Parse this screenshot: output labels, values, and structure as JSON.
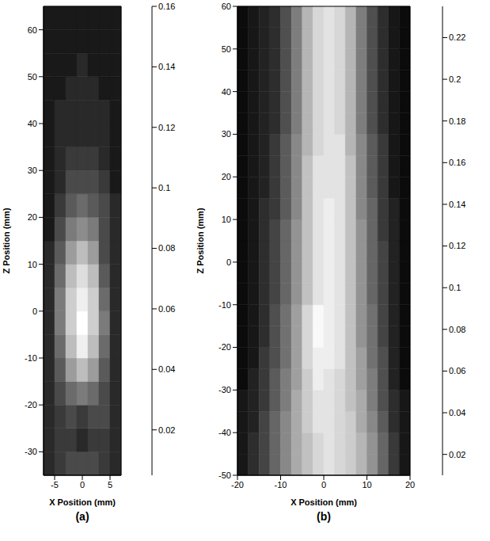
{
  "chart_data": [
    {
      "type": "heatmap",
      "title": "(a)",
      "x_label": "X Position (mm)",
      "y_label": "Z Position (mm)",
      "xlim": [
        -7,
        7
      ],
      "xticks": [
        -5,
        0,
        5
      ],
      "ylim": [
        -35,
        65
      ],
      "yticks": [
        -30,
        -20,
        -10,
        0,
        10,
        20,
        30,
        40,
        50,
        60
      ],
      "color": "gray",
      "clim": [
        0.005,
        0.16
      ],
      "cticks": [
        0.02,
        0.04,
        0.06,
        0.08,
        0.1,
        0.12,
        0.14,
        0.16
      ],
      "x_bins": [
        -7,
        -5,
        -3,
        -1,
        1,
        3,
        5,
        7
      ],
      "y_bins": [
        -35,
        -30,
        -25,
        -20,
        -15,
        -10,
        -5,
        0,
        5,
        10,
        15,
        20,
        25,
        30,
        35,
        40,
        45,
        50,
        55,
        60,
        65
      ],
      "cells": [
        [
          0.03,
          0.04,
          0.05,
          0.05,
          0.05,
          0.04,
          0.03
        ],
        [
          0.03,
          0.04,
          0.04,
          0.03,
          0.04,
          0.04,
          0.03
        ],
        [
          0.03,
          0.04,
          0.05,
          0.04,
          0.05,
          0.05,
          0.03
        ],
        [
          0.03,
          0.05,
          0.07,
          0.08,
          0.07,
          0.05,
          0.03
        ],
        [
          0.03,
          0.06,
          0.1,
          0.12,
          0.1,
          0.06,
          0.03
        ],
        [
          0.03,
          0.07,
          0.12,
          0.15,
          0.12,
          0.07,
          0.03
        ],
        [
          0.03,
          0.08,
          0.13,
          0.16,
          0.13,
          0.08,
          0.03
        ],
        [
          0.03,
          0.08,
          0.13,
          0.15,
          0.13,
          0.07,
          0.03
        ],
        [
          0.03,
          0.07,
          0.12,
          0.14,
          0.12,
          0.06,
          0.03
        ],
        [
          0.03,
          0.06,
          0.1,
          0.12,
          0.1,
          0.05,
          0.03
        ],
        [
          0.02,
          0.05,
          0.08,
          0.09,
          0.08,
          0.05,
          0.03
        ],
        [
          0.02,
          0.04,
          0.06,
          0.07,
          0.06,
          0.05,
          0.03
        ],
        [
          0.02,
          0.03,
          0.05,
          0.05,
          0.05,
          0.04,
          0.02
        ],
        [
          0.02,
          0.03,
          0.04,
          0.04,
          0.04,
          0.03,
          0.02
        ],
        [
          0.02,
          0.03,
          0.03,
          0.03,
          0.03,
          0.03,
          0.02
        ],
        [
          0.02,
          0.03,
          0.03,
          0.03,
          0.03,
          0.03,
          0.02
        ],
        [
          0.02,
          0.02,
          0.03,
          0.03,
          0.03,
          0.02,
          0.02
        ],
        [
          0.02,
          0.02,
          0.02,
          0.03,
          0.02,
          0.02,
          0.02
        ],
        [
          0.02,
          0.02,
          0.02,
          0.02,
          0.02,
          0.02,
          0.02
        ],
        [
          0.02,
          0.02,
          0.02,
          0.02,
          0.02,
          0.02,
          0.02
        ]
      ]
    },
    {
      "type": "heatmap",
      "title": "(b)",
      "x_label": "X Position (mm)",
      "y_label": "Z Position (mm)",
      "xlim": [
        -20,
        20
      ],
      "xticks": [
        -20,
        -10,
        0,
        10,
        20
      ],
      "ylim": [
        -50,
        60
      ],
      "yticks": [
        -50,
        -40,
        -30,
        -20,
        -10,
        0,
        10,
        20,
        30,
        40,
        50,
        60
      ],
      "color": "gray",
      "clim": [
        0.01,
        0.235
      ],
      "cticks": [
        0.02,
        0.04,
        0.06,
        0.08,
        0.1,
        0.12,
        0.14,
        0.16,
        0.18,
        0.2,
        0.22
      ],
      "x_bins": [
        -20,
        -17.5,
        -15,
        -12.5,
        -10,
        -7.5,
        -5,
        -2.5,
        0,
        2.5,
        5,
        7.5,
        10,
        12.5,
        15,
        17.5,
        20
      ],
      "y_bins": [
        -50,
        -45,
        -40,
        -35,
        -30,
        -25,
        -20,
        -15,
        -10,
        -5,
        0,
        5,
        10,
        15,
        20,
        25,
        30,
        35,
        40,
        45,
        50,
        55,
        60
      ],
      "cells": [
        [
          0.03,
          0.05,
          0.07,
          0.1,
          0.13,
          0.16,
          0.18,
          0.2,
          0.21,
          0.2,
          0.19,
          0.17,
          0.14,
          0.1,
          0.06,
          0.03
        ],
        [
          0.03,
          0.05,
          0.07,
          0.1,
          0.13,
          0.16,
          0.18,
          0.2,
          0.21,
          0.2,
          0.19,
          0.17,
          0.14,
          0.1,
          0.06,
          0.03
        ],
        [
          0.03,
          0.04,
          0.07,
          0.1,
          0.13,
          0.16,
          0.19,
          0.21,
          0.21,
          0.2,
          0.19,
          0.16,
          0.13,
          0.09,
          0.05,
          0.03
        ],
        [
          0.03,
          0.04,
          0.06,
          0.09,
          0.12,
          0.16,
          0.19,
          0.21,
          0.21,
          0.2,
          0.18,
          0.16,
          0.12,
          0.08,
          0.05,
          0.03
        ],
        [
          0.02,
          0.04,
          0.06,
          0.09,
          0.12,
          0.15,
          0.19,
          0.22,
          0.21,
          0.2,
          0.18,
          0.15,
          0.12,
          0.08,
          0.04,
          0.02
        ],
        [
          0.02,
          0.03,
          0.06,
          0.08,
          0.11,
          0.15,
          0.2,
          0.22,
          0.22,
          0.21,
          0.18,
          0.15,
          0.11,
          0.08,
          0.04,
          0.02
        ],
        [
          0.02,
          0.03,
          0.05,
          0.08,
          0.11,
          0.15,
          0.2,
          0.23,
          0.22,
          0.21,
          0.18,
          0.14,
          0.11,
          0.07,
          0.04,
          0.02
        ],
        [
          0.02,
          0.03,
          0.05,
          0.08,
          0.11,
          0.15,
          0.2,
          0.23,
          0.22,
          0.21,
          0.18,
          0.14,
          0.11,
          0.07,
          0.04,
          0.02
        ],
        [
          0.02,
          0.03,
          0.05,
          0.07,
          0.1,
          0.14,
          0.18,
          0.21,
          0.22,
          0.21,
          0.18,
          0.14,
          0.1,
          0.07,
          0.04,
          0.02
        ],
        [
          0.02,
          0.03,
          0.05,
          0.07,
          0.1,
          0.14,
          0.18,
          0.21,
          0.22,
          0.21,
          0.18,
          0.14,
          0.1,
          0.07,
          0.04,
          0.02
        ],
        [
          0.02,
          0.03,
          0.05,
          0.07,
          0.1,
          0.14,
          0.18,
          0.21,
          0.22,
          0.21,
          0.18,
          0.14,
          0.1,
          0.07,
          0.04,
          0.02
        ],
        [
          0.02,
          0.03,
          0.05,
          0.07,
          0.1,
          0.14,
          0.18,
          0.21,
          0.22,
          0.21,
          0.18,
          0.14,
          0.1,
          0.06,
          0.04,
          0.02
        ],
        [
          0.02,
          0.03,
          0.05,
          0.06,
          0.09,
          0.13,
          0.18,
          0.21,
          0.22,
          0.21,
          0.18,
          0.13,
          0.1,
          0.06,
          0.04,
          0.02
        ],
        [
          0.02,
          0.03,
          0.04,
          0.06,
          0.09,
          0.13,
          0.18,
          0.21,
          0.21,
          0.21,
          0.18,
          0.13,
          0.09,
          0.06,
          0.03,
          0.02
        ],
        [
          0.02,
          0.03,
          0.04,
          0.06,
          0.09,
          0.13,
          0.18,
          0.21,
          0.21,
          0.21,
          0.18,
          0.13,
          0.09,
          0.06,
          0.03,
          0.02
        ],
        [
          0.02,
          0.03,
          0.04,
          0.06,
          0.09,
          0.13,
          0.17,
          0.2,
          0.21,
          0.21,
          0.17,
          0.13,
          0.09,
          0.06,
          0.03,
          0.02
        ],
        [
          0.02,
          0.03,
          0.04,
          0.05,
          0.08,
          0.12,
          0.17,
          0.2,
          0.21,
          0.2,
          0.17,
          0.12,
          0.08,
          0.05,
          0.03,
          0.02
        ],
        [
          0.02,
          0.03,
          0.04,
          0.05,
          0.08,
          0.12,
          0.17,
          0.2,
          0.21,
          0.2,
          0.17,
          0.12,
          0.08,
          0.05,
          0.03,
          0.02
        ],
        [
          0.02,
          0.03,
          0.04,
          0.05,
          0.08,
          0.12,
          0.17,
          0.2,
          0.21,
          0.2,
          0.17,
          0.12,
          0.08,
          0.05,
          0.03,
          0.02
        ],
        [
          0.02,
          0.03,
          0.04,
          0.05,
          0.08,
          0.12,
          0.17,
          0.2,
          0.21,
          0.2,
          0.17,
          0.12,
          0.08,
          0.05,
          0.03,
          0.02
        ],
        [
          0.02,
          0.03,
          0.04,
          0.05,
          0.08,
          0.12,
          0.17,
          0.2,
          0.21,
          0.2,
          0.17,
          0.12,
          0.08,
          0.05,
          0.03,
          0.02
        ],
        [
          0.02,
          0.03,
          0.04,
          0.05,
          0.08,
          0.12,
          0.17,
          0.2,
          0.21,
          0.2,
          0.17,
          0.12,
          0.08,
          0.05,
          0.03,
          0.02
        ]
      ]
    }
  ]
}
